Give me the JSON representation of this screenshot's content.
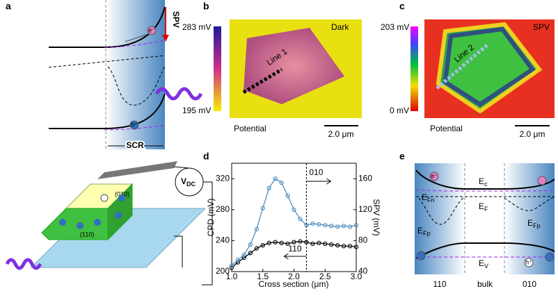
{
  "panel_a": {
    "label": "a",
    "spv": "SPV",
    "electron": "e⁻",
    "hole": "h⁺",
    "scr": "SCR",
    "vdc_main": "V",
    "vdc_sub": "DC",
    "facet_top": "(010)",
    "facet_side": "(110)"
  },
  "panel_b": {
    "label": "b",
    "cbar_max": "283 mV",
    "cbar_min": "195 mV",
    "condition": "Dark",
    "line": "Line 1",
    "caption": "Potential",
    "scale": "2.0 μm"
  },
  "panel_c": {
    "label": "c",
    "cbar_max": "203 mV",
    "cbar_min": "0 mV",
    "condition": "SPV",
    "line": "Line 2",
    "caption": "Potential",
    "scale": "2.0 μm"
  },
  "panel_e": {
    "label": "e",
    "ec": {
      "main": "E",
      "sub": "c"
    },
    "efn": {
      "main": "E",
      "sub": "Fn"
    },
    "ef": {
      "main": "E",
      "sub": "F"
    },
    "efp": {
      "main": "E",
      "sub": "Fp"
    },
    "ev": {
      "main": "E",
      "sub": "V"
    },
    "electron": "e⁻",
    "hole": "h⁺",
    "regions": [
      "110",
      "bulk",
      "010"
    ]
  },
  "chart_data": {
    "type": "line",
    "label": "d",
    "xlabel": "Cross section (μm)",
    "ylabel": "CPD (mV)",
    "y2label": "SPV (mV)",
    "x": [
      1.0,
      1.1,
      1.2,
      1.3,
      1.4,
      1.5,
      1.6,
      1.7,
      1.8,
      1.9,
      2.0,
      2.1,
      2.2,
      2.3,
      2.4,
      2.5,
      2.6,
      2.7,
      2.8,
      2.9,
      3.0
    ],
    "series": [
      {
        "color": "#000000",
        "axis": "y",
        "values": [
          205,
          212,
          218,
          224,
          230,
          234,
          237,
          238,
          237,
          236,
          238,
          239,
          238,
          236,
          237,
          236,
          235,
          234,
          233,
          233,
          232
        ]
      },
      {
        "color": "#4f8fc0",
        "axis": "y2",
        "values": [
          48,
          55,
          62,
          75,
          95,
          122,
          148,
          160,
          155,
          138,
          120,
          108,
          100,
          102,
          101,
          100,
          99,
          98,
          99,
          98,
          100
        ]
      }
    ],
    "xlim": [
      1.0,
      3.0
    ],
    "xticks": [
      {
        "value": 1.0,
        "label": "1.0"
      },
      {
        "value": 1.5,
        "label": "1.5"
      },
      {
        "value": 2.0,
        "label": "2.0"
      },
      {
        "value": 2.5,
        "label": "2.5"
      },
      {
        "value": 3.0,
        "label": "3.0"
      }
    ],
    "ylim": [
      200,
      340
    ],
    "yticks": [
      200,
      240,
      280,
      320
    ],
    "y2lim": [
      40,
      180
    ],
    "y2ticks": [
      40,
      80,
      120,
      160
    ],
    "vline": 2.2,
    "annotations": [
      "010",
      "110"
    ]
  }
}
